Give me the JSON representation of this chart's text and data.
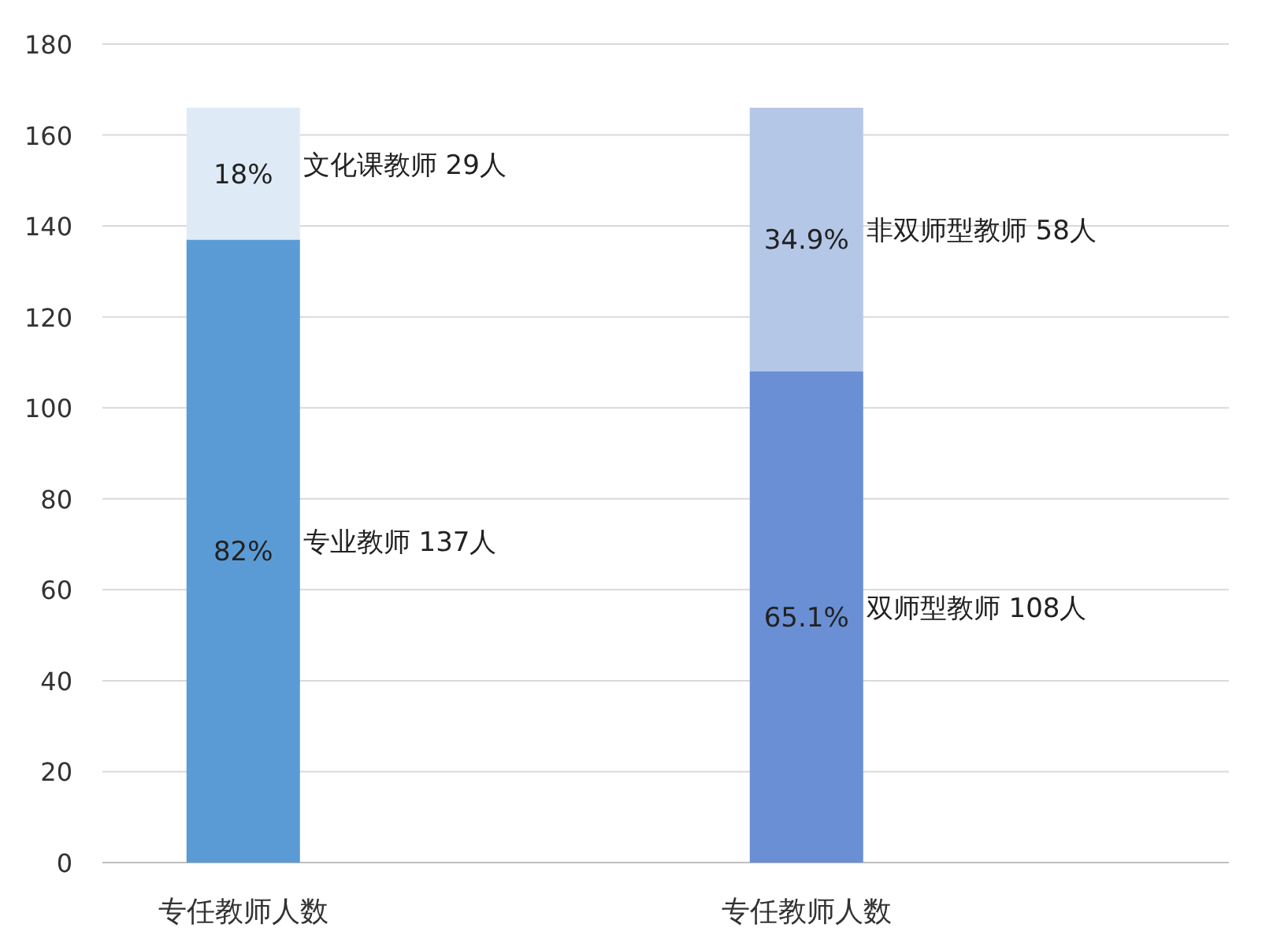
{
  "chart_data": {
    "type": "bar",
    "stacked": true,
    "categories": [
      "专任教师人数",
      "专任教师人数"
    ],
    "series": [
      {
        "name": "专业教师 137人",
        "color": "#5b9bd5",
        "values": [
          137,
          null
        ]
      },
      {
        "name": "文化课教师 29人",
        "color": "#deebf7",
        "values": [
          29,
          null
        ]
      },
      {
        "name": "双师型教师 108人",
        "color": "#6a8fd4",
        "values": [
          null,
          108
        ]
      },
      {
        "name": "非双师型教师 58人",
        "color": "#b4c7e7",
        "values": [
          null,
          58
        ]
      }
    ],
    "annotations": [
      "82%",
      "18%",
      "65.1%",
      "34.9%"
    ],
    "ylim": [
      0,
      180
    ],
    "yticks": [
      0,
      20,
      40,
      60,
      80,
      100,
      120,
      140,
      160,
      180
    ],
    "grid": "y"
  }
}
